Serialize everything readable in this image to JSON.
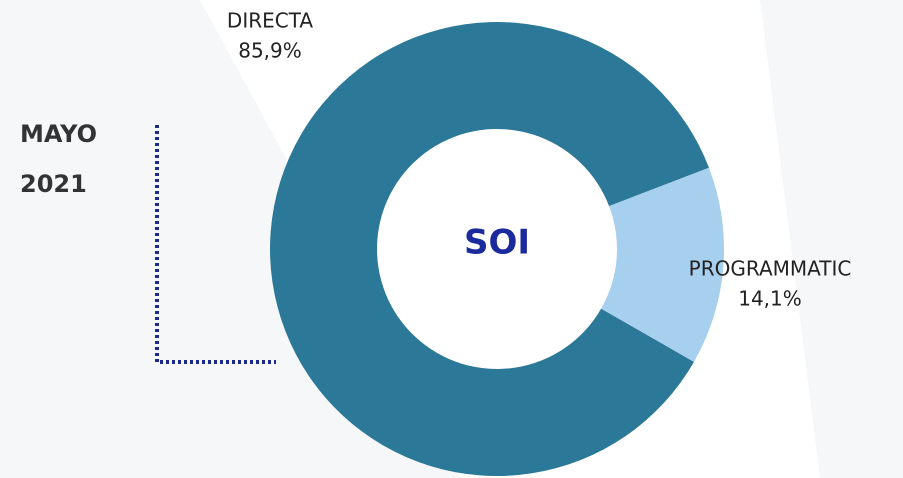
{
  "chart_data": {
    "type": "donut",
    "center_text": "SOI",
    "annotation": [
      "MAYO",
      "2021"
    ],
    "categories": [
      "DIRECTA",
      "PROGRAMMATIC"
    ],
    "values": [
      85.9,
      14.1
    ],
    "value_labels": [
      "85,9%",
      "14,1%"
    ],
    "colors": [
      "#2b7898",
      "#a7cfee"
    ]
  }
}
